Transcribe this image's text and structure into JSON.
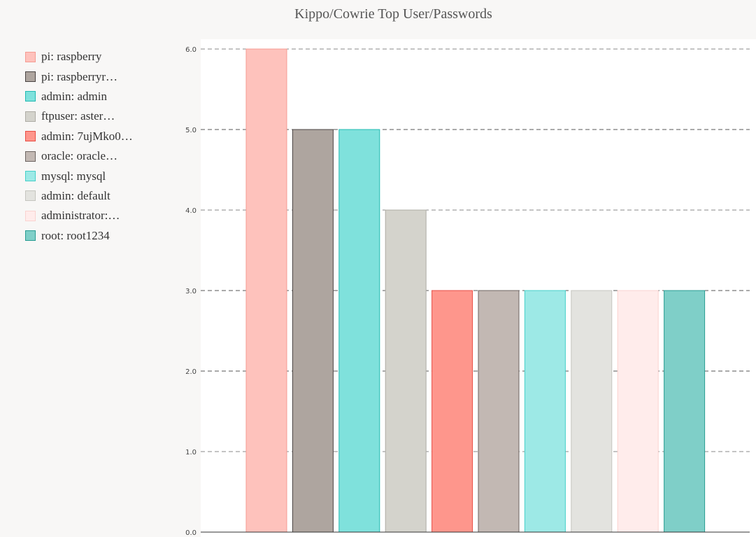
{
  "chart_data": {
    "type": "bar",
    "title": "Kippo/Cowrie Top User/Passwords",
    "xlabel": "",
    "ylabel": "",
    "ylim": [
      0,
      6
    ],
    "yticks": [
      "0.0",
      "1.0",
      "2.0",
      "3.0",
      "4.0",
      "5.0",
      "6.0"
    ],
    "grid": true,
    "legend_position": "left",
    "categories": [
      "pi: raspberry",
      "pi: raspberryr…",
      "admin: admin",
      "ftpuser: aster…",
      "admin: 7ujMko0…",
      "oracle: oracle…",
      "mysql: mysql",
      "admin: default",
      "administrator:…",
      "root: root1234"
    ],
    "values": [
      6,
      5,
      5,
      4,
      3,
      3,
      3,
      3,
      3,
      3
    ],
    "colors": [
      {
        "fill": "#fec2bc",
        "stroke": "#f59c93"
      },
      {
        "fill": "#aea59f",
        "stroke": "#4a4443"
      },
      {
        "fill": "#7fe1dc",
        "stroke": "#22bab2"
      },
      {
        "fill": "#d4d3cc",
        "stroke": "#aeaca5"
      },
      {
        "fill": "#fe968c",
        "stroke": "#e84e45"
      },
      {
        "fill": "#c2b8b3",
        "stroke": "#6d6562"
      },
      {
        "fill": "#9de9e6",
        "stroke": "#46d0c9"
      },
      {
        "fill": "#e3e3df",
        "stroke": "#c5c5bf"
      },
      {
        "fill": "#ffeceb",
        "stroke": "#fad3d0"
      },
      {
        "fill": "#7fcfc8",
        "stroke": "#2a9d93"
      }
    ]
  }
}
